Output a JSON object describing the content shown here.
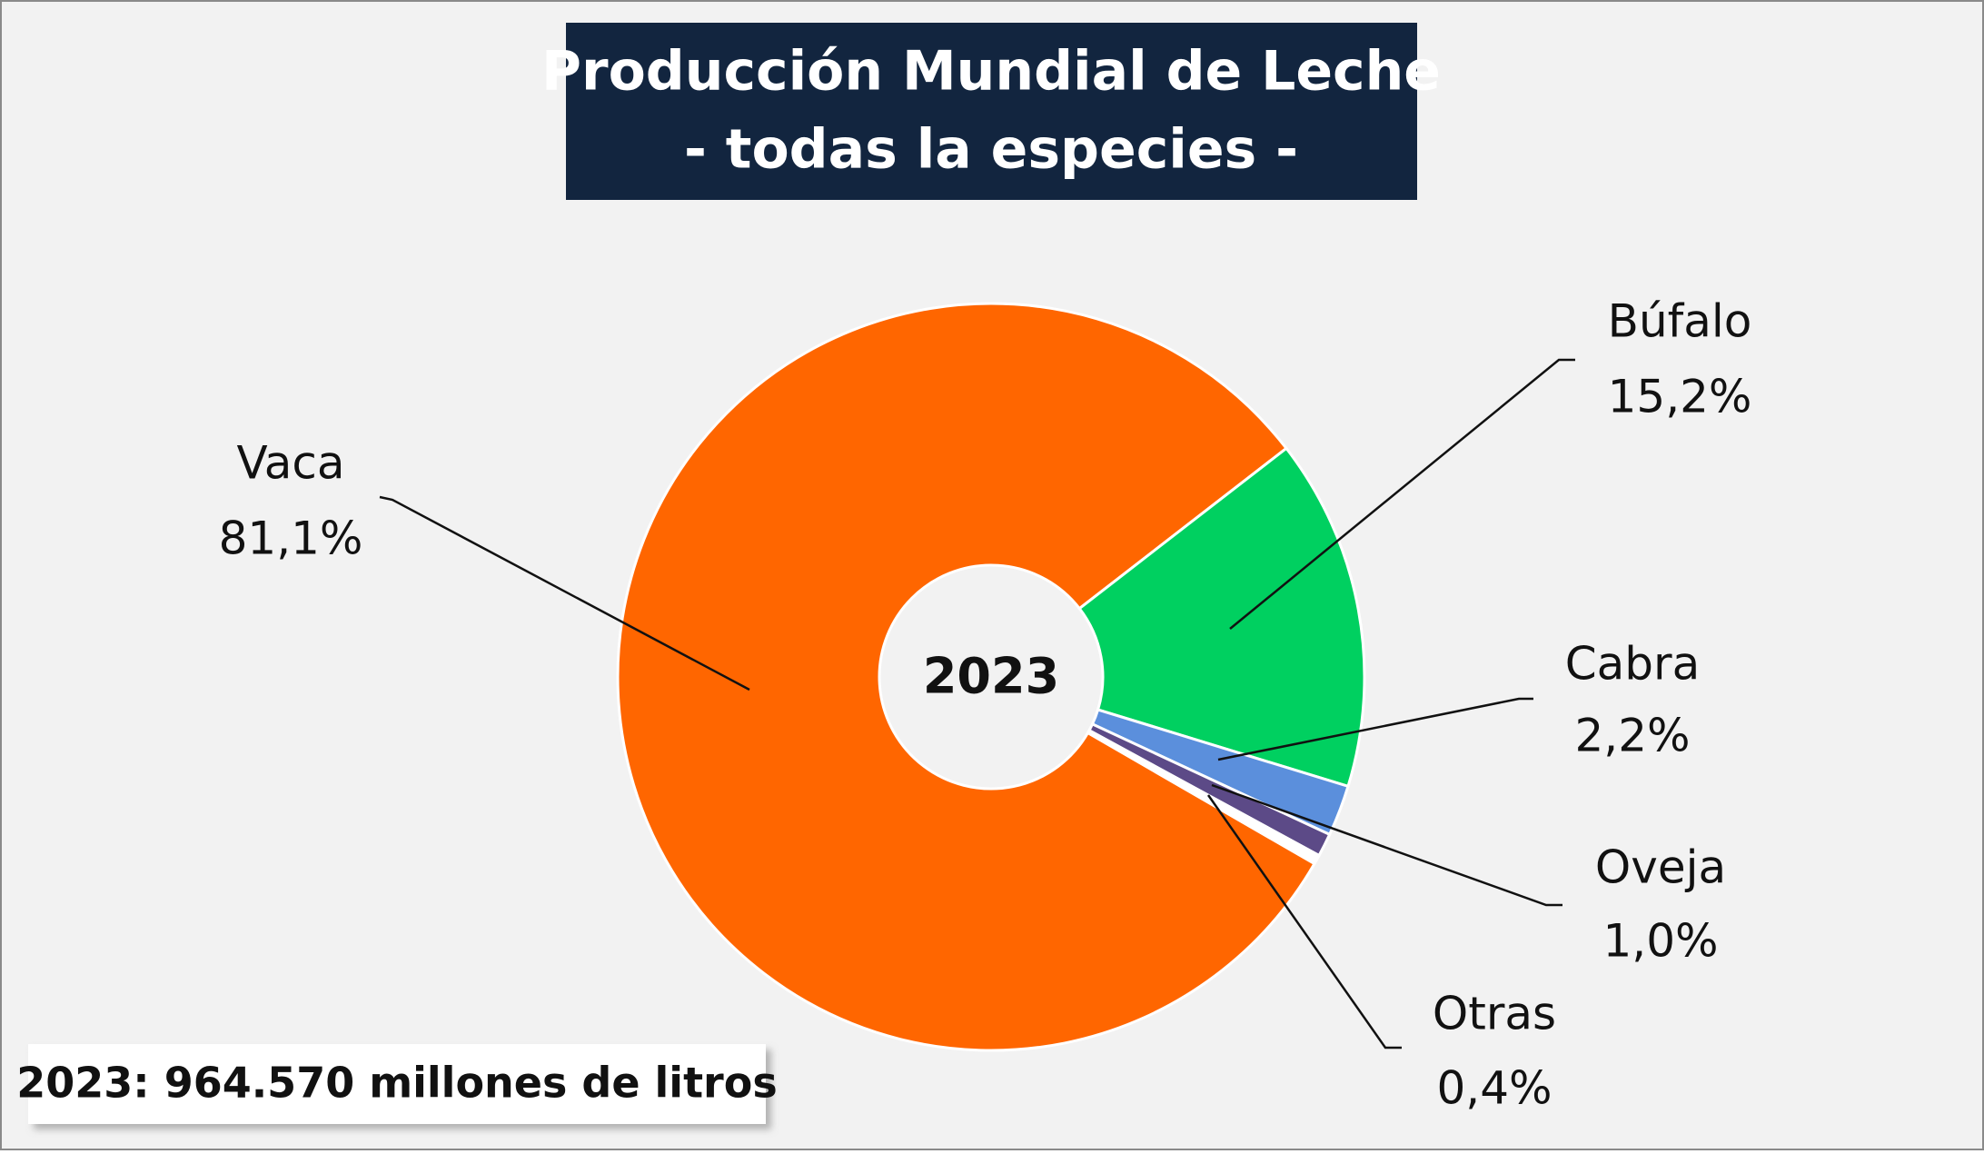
{
  "chart_data": {
    "type": "pie",
    "title": "Producción Mundial de Leche",
    "subtitle": "- todas la especies -",
    "center_label": "2023",
    "note": "2023: 964.570 millones de litros",
    "categories": [
      "Vaca",
      "Búfalo",
      "Cabra",
      "Oveja",
      "Otras"
    ],
    "values": [
      81.1,
      15.2,
      2.2,
      1.0,
      0.4
    ],
    "value_labels": [
      "81,1%",
      "15,2%",
      "2,2%",
      "1,0%",
      "0,4%"
    ],
    "colors": [
      "#ff6600",
      "#00d060",
      "#5b8fdc",
      "#5c4a87",
      "#ffffff"
    ]
  }
}
